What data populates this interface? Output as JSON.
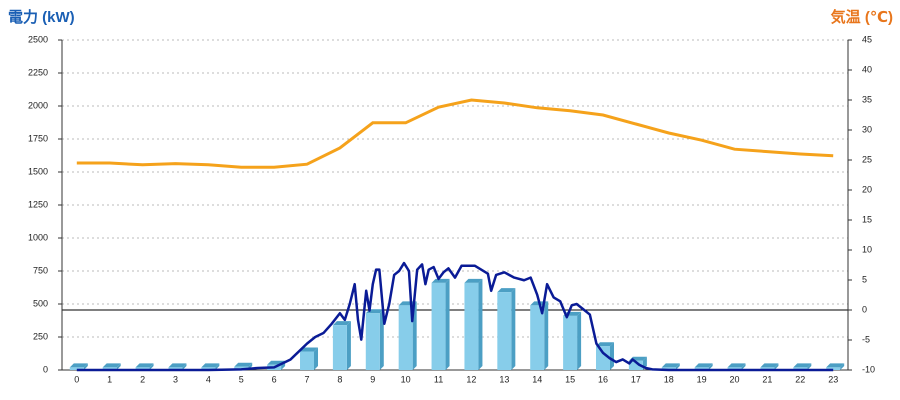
{
  "chart_data": {
    "type": "bar-line",
    "y_title": "電力 (kW)",
    "y2_title": "気温 (℃)",
    "categories": [
      "0",
      "1",
      "2",
      "3",
      "4",
      "5",
      "6",
      "7",
      "8",
      "9",
      "10",
      "11",
      "12",
      "13",
      "14",
      "15",
      "16",
      "17",
      "18",
      "19",
      "20",
      "21",
      "22",
      "23"
    ],
    "xlim": [
      -0.45,
      23.45
    ],
    "ylim": [
      0,
      2500
    ],
    "yticks": [
      0,
      250,
      500,
      750,
      1000,
      1250,
      1500,
      1750,
      2000,
      2250,
      2500
    ],
    "y2lim": [
      -10,
      45
    ],
    "y2ticks": [
      -10,
      -5,
      0,
      5,
      10,
      15,
      20,
      25,
      30,
      35,
      40,
      45
    ],
    "grid": true,
    "zero_line_y2": true,
    "bars": {
      "color": "#87cdea",
      "side_color": "#4c9fc4",
      "values": [
        20,
        20,
        20,
        20,
        20,
        25,
        40,
        140,
        340,
        430,
        490,
        660,
        660,
        590,
        490,
        410,
        180,
        70,
        20,
        20,
        20,
        20,
        20,
        20
      ]
    },
    "temperature": {
      "color": "#f5a21b",
      "axis": "y2",
      "values": [
        24.5,
        24.5,
        24.2,
        24.4,
        24.2,
        23.8,
        23.8,
        24.3,
        27,
        31.2,
        31.2,
        33.8,
        35,
        34.5,
        33.7,
        33.2,
        32.5,
        31,
        29.5,
        28.3,
        26.8,
        26.4,
        26,
        25.7
      ]
    },
    "power": {
      "color": "#0a1b96",
      "x": [
        0,
        1,
        2,
        3,
        4,
        5,
        5.5,
        6,
        6.5,
        7,
        7.25,
        7.5,
        7.75,
        8,
        8.15,
        8.3,
        8.45,
        8.55,
        8.65,
        8.8,
        8.9,
        9,
        9.1,
        9.2,
        9.35,
        9.5,
        9.65,
        9.8,
        9.95,
        10.1,
        10.2,
        10.35,
        10.5,
        10.6,
        10.7,
        10.85,
        11,
        11.15,
        11.3,
        11.5,
        11.7,
        11.9,
        12.1,
        12.3,
        12.5,
        12.6,
        12.75,
        13,
        13.3,
        13.6,
        13.8,
        14,
        14.15,
        14.3,
        14.5,
        14.7,
        14.9,
        15.05,
        15.2,
        15.4,
        15.6,
        15.8,
        16,
        16.2,
        16.4,
        16.6,
        16.8,
        16.9,
        17.1,
        17.3,
        17.5,
        18,
        19,
        20,
        21,
        22,
        23
      ],
      "values": [
        0,
        0,
        0,
        0,
        0,
        5,
        15,
        20,
        80,
        200,
        250,
        280,
        350,
        430,
        380,
        500,
        650,
        380,
        230,
        600,
        450,
        650,
        760,
        760,
        350,
        500,
        720,
        750,
        810,
        750,
        370,
        760,
        800,
        650,
        760,
        780,
        690,
        740,
        770,
        700,
        790,
        790,
        790,
        760,
        730,
        600,
        720,
        740,
        700,
        680,
        700,
        570,
        430,
        650,
        550,
        520,
        400,
        490,
        500,
        460,
        420,
        200,
        130,
        90,
        60,
        80,
        50,
        80,
        40,
        15,
        5,
        0,
        0,
        0,
        0,
        0,
        0
      ]
    }
  }
}
